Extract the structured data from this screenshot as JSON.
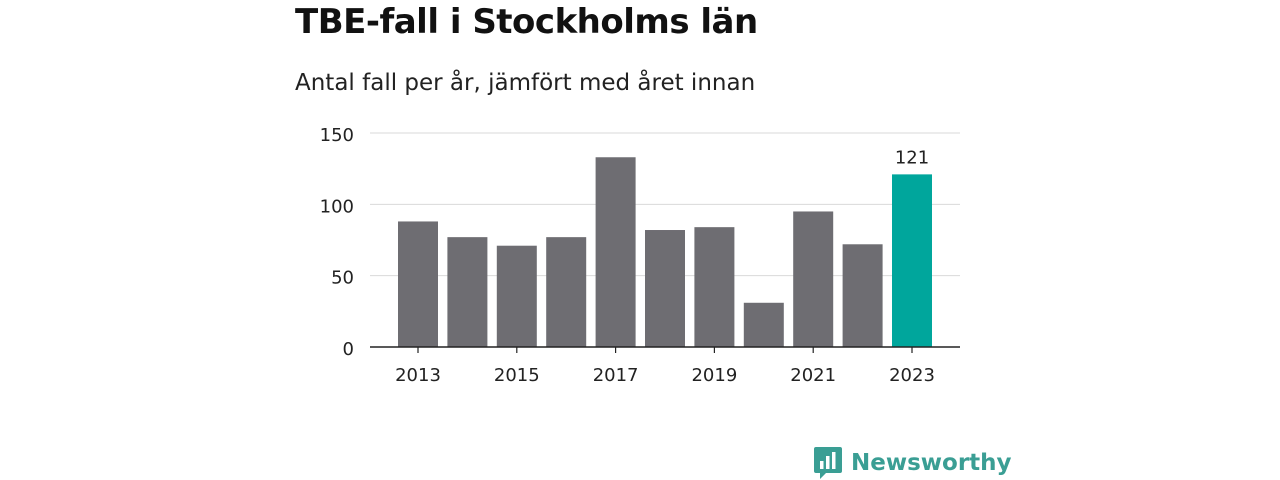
{
  "header": {
    "title": "TBE-fall i Stockholms län",
    "subtitle": "Antal fall per år, jämfört med året innan"
  },
  "branding": {
    "logo_text": "Newsworthy",
    "logo_color": "#3a9e94"
  },
  "colors": {
    "bar": "#6e6d72",
    "highlight": "#00a69c",
    "grid": "#d9d9d9",
    "axis": "#222222"
  },
  "chart_data": {
    "type": "bar",
    "categories": [
      "2013",
      "2014",
      "2015",
      "2016",
      "2017",
      "2018",
      "2019",
      "2020",
      "2021",
      "2022",
      "2023"
    ],
    "values": [
      88,
      77,
      71,
      77,
      133,
      82,
      84,
      31,
      95,
      72,
      121
    ],
    "tick_labels_x": [
      "2013",
      "2015",
      "2017",
      "2019",
      "2021",
      "2023"
    ],
    "yticks": [
      0,
      50,
      100,
      150
    ],
    "ylim": [
      0,
      150
    ],
    "highlight_category": "2023",
    "data_labels": [
      {
        "category": "2023",
        "label": "121"
      }
    ],
    "grid": true,
    "legend": false
  }
}
